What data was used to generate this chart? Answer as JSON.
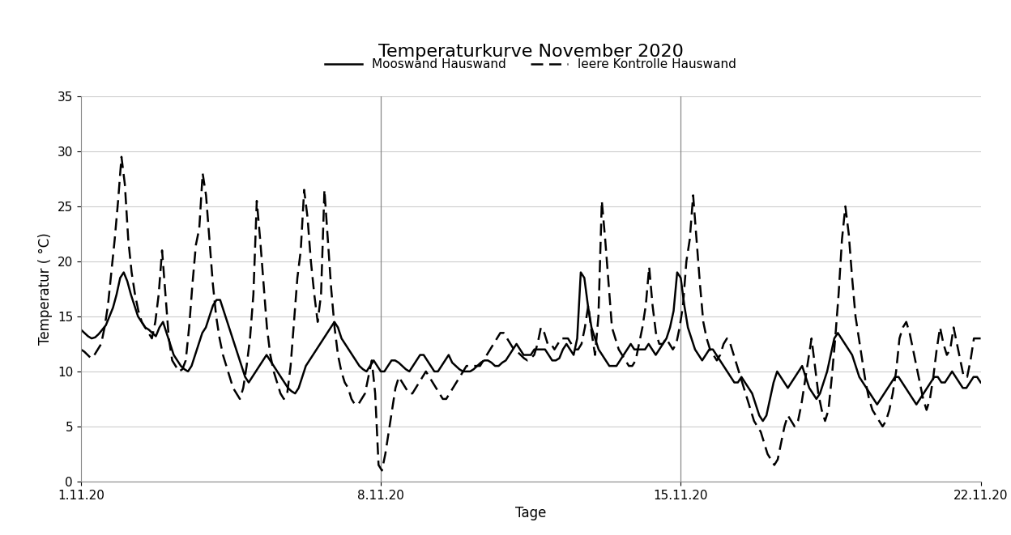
{
  "title": "Temperaturkurve November 2020",
  "xlabel": "Tage",
  "ylabel": "Temperatur ( °C)",
  "ylim": [
    0,
    35
  ],
  "yticks": [
    0,
    5,
    10,
    15,
    20,
    25,
    30,
    35
  ],
  "xtick_labels": [
    "1.11.20",
    "8.11.20",
    "15.11.20",
    "22.11.20"
  ],
  "xtick_positions": [
    0,
    7,
    14,
    21
  ],
  "vline_positions": [
    7,
    14
  ],
  "legend_solid": "Mooswand Hauswand",
  "legend_dashed": "leere Kontrolle Hauswand",
  "solid_color": "#000000",
  "dashed_color": "#000000",
  "background_color": "#ffffff",
  "title_fontsize": 16,
  "label_fontsize": 12,
  "tick_fontsize": 11,
  "mooswand": [
    13.8,
    13.5,
    13.2,
    13.0,
    13.1,
    13.4,
    13.8,
    14.2,
    15.0,
    15.8,
    17.0,
    18.5,
    19.0,
    18.2,
    17.0,
    16.0,
    15.0,
    14.5,
    14.0,
    13.8,
    13.5,
    13.2,
    14.0,
    14.5,
    13.5,
    12.5,
    11.5,
    11.0,
    10.5,
    10.2,
    10.0,
    10.5,
    11.5,
    12.5,
    13.5,
    14.0,
    15.0,
    16.0,
    16.5,
    16.5,
    15.5,
    14.5,
    13.5,
    12.5,
    11.5,
    10.5,
    9.5,
    9.0,
    9.5,
    10.0,
    10.5,
    11.0,
    11.5,
    11.0,
    10.5,
    10.0,
    9.5,
    9.0,
    8.5,
    8.2,
    8.0,
    8.5,
    9.5,
    10.5,
    11.0,
    11.5,
    12.0,
    12.5,
    13.0,
    13.5,
    14.0,
    14.5,
    14.0,
    13.0,
    12.5,
    12.0,
    11.5,
    11.0,
    10.5,
    10.2,
    10.0,
    10.5,
    11.0,
    10.5,
    10.0,
    10.0,
    10.5,
    11.0,
    11.0,
    10.8,
    10.5,
    10.2,
    10.0,
    10.5,
    11.0,
    11.5,
    11.5,
    11.0,
    10.5,
    10.0,
    10.0,
    10.5,
    11.0,
    11.5,
    10.8,
    10.5,
    10.2,
    10.0,
    10.0,
    10.0,
    10.2,
    10.5,
    10.8,
    11.0,
    11.0,
    10.8,
    10.5,
    10.5,
    10.8,
    11.0,
    11.5,
    12.0,
    12.5,
    12.0,
    11.5,
    11.5,
    11.5,
    12.0,
    12.0,
    12.0,
    12.0,
    11.5,
    11.0,
    11.0,
    11.2,
    12.0,
    12.5,
    12.0,
    11.5,
    13.0,
    19.0,
    18.5,
    16.0,
    14.0,
    13.0,
    12.0,
    11.5,
    11.0,
    10.5,
    10.5,
    10.5,
    11.0,
    11.5,
    12.0,
    12.5,
    12.0,
    12.0,
    12.0,
    12.0,
    12.5,
    12.0,
    11.5,
    12.0,
    12.5,
    13.0,
    14.0,
    15.5,
    19.0,
    18.5,
    16.0,
    14.0,
    13.0,
    12.0,
    11.5,
    11.0,
    11.5,
    12.0,
    12.0,
    11.5,
    11.0,
    10.5,
    10.0,
    9.5,
    9.0,
    9.0,
    9.5,
    9.0,
    8.5,
    8.0,
    7.0,
    6.0,
    5.5,
    6.0,
    7.5,
    9.0,
    10.0,
    9.5,
    9.0,
    8.5,
    9.0,
    9.5,
    10.0,
    10.5,
    9.5,
    8.5,
    8.0,
    7.5,
    8.0,
    9.0,
    10.0,
    11.5,
    13.0,
    13.5,
    13.0,
    12.5,
    12.0,
    11.5,
    10.5,
    9.5,
    9.0,
    8.5,
    8.0,
    7.5,
    7.0,
    7.5,
    8.0,
    8.5,
    9.0,
    9.5,
    9.5,
    9.0,
    8.5,
    8.0,
    7.5,
    7.0,
    7.5,
    8.0,
    8.5,
    9.0,
    9.5,
    9.5,
    9.0,
    9.0,
    9.5,
    10.0,
    9.5,
    9.0,
    8.5,
    8.5,
    9.0,
    9.5,
    9.5,
    9.0
  ],
  "kontrolle": [
    12.0,
    11.8,
    11.5,
    11.2,
    11.5,
    12.0,
    12.5,
    14.0,
    16.0,
    19.0,
    22.0,
    25.5,
    29.5,
    27.0,
    22.0,
    19.0,
    17.0,
    15.5,
    14.5,
    14.0,
    13.5,
    13.0,
    14.5,
    17.0,
    21.0,
    17.0,
    13.0,
    11.0,
    10.5,
    10.0,
    10.2,
    11.0,
    14.0,
    18.0,
    21.5,
    23.0,
    28.0,
    26.0,
    22.0,
    18.0,
    15.0,
    13.0,
    11.5,
    10.5,
    9.5,
    8.5,
    8.0,
    7.5,
    8.5,
    10.5,
    13.0,
    17.0,
    25.5,
    22.0,
    18.0,
    14.0,
    11.5,
    10.0,
    9.0,
    8.0,
    7.5,
    8.0,
    10.5,
    14.5,
    18.5,
    21.0,
    26.5,
    24.0,
    20.0,
    17.0,
    14.5,
    17.0,
    26.5,
    22.0,
    17.5,
    14.0,
    11.5,
    10.0,
    9.0,
    8.5,
    7.5,
    7.0,
    7.0,
    7.5,
    8.0,
    9.5,
    11.0,
    8.0,
    1.5,
    1.0,
    2.5,
    4.5,
    6.5,
    8.5,
    9.5,
    9.0,
    8.5,
    8.0,
    8.0,
    8.5,
    9.0,
    9.5,
    10.0,
    9.5,
    9.0,
    8.5,
    8.0,
    7.5,
    7.5,
    8.0,
    8.5,
    9.0,
    9.5,
    10.0,
    10.5,
    10.5,
    10.5,
    10.5,
    10.5,
    11.0,
    11.5,
    12.0,
    12.5,
    13.0,
    13.5,
    13.5,
    13.0,
    12.5,
    12.0,
    11.8,
    11.5,
    11.2,
    11.0,
    11.2,
    11.5,
    12.5,
    14.0,
    13.5,
    12.5,
    12.5,
    12.0,
    12.5,
    13.0,
    13.0,
    13.0,
    12.5,
    12.0,
    12.0,
    12.5,
    14.0,
    16.0,
    13.5,
    11.5,
    15.0,
    25.5,
    22.0,
    18.0,
    14.0,
    13.0,
    12.0,
    11.5,
    11.0,
    10.5,
    10.5,
    11.0,
    12.5,
    14.0,
    16.0,
    19.5,
    16.0,
    13.5,
    12.5,
    12.5,
    13.0,
    12.5,
    12.0,
    12.5,
    14.0,
    16.0,
    20.0,
    22.0,
    26.0,
    22.0,
    18.0,
    14.5,
    13.0,
    12.0,
    11.5,
    11.0,
    11.5,
    12.5,
    13.0,
    12.5,
    11.5,
    10.5,
    9.5,
    8.5,
    7.5,
    6.5,
    5.5,
    5.0,
    4.5,
    3.5,
    2.5,
    2.0,
    1.5,
    2.0,
    3.5,
    5.0,
    6.0,
    5.5,
    5.0,
    5.5,
    7.0,
    9.0,
    11.0,
    13.0,
    10.5,
    8.0,
    6.5,
    5.5,
    6.5,
    9.5,
    13.0,
    17.0,
    22.0,
    25.0,
    22.5,
    18.5,
    15.0,
    13.0,
    11.0,
    9.0,
    7.5,
    6.5,
    6.0,
    5.5,
    5.0,
    5.5,
    6.5,
    8.0,
    10.0,
    13.0,
    14.0,
    14.5,
    13.5,
    12.0,
    10.5,
    9.0,
    7.5,
    6.5,
    7.5,
    9.5,
    12.0,
    14.0,
    12.5,
    11.5,
    12.0,
    14.0,
    12.5,
    11.0,
    9.5,
    9.5,
    11.0,
    13.0,
    13.0,
    13.0
  ]
}
